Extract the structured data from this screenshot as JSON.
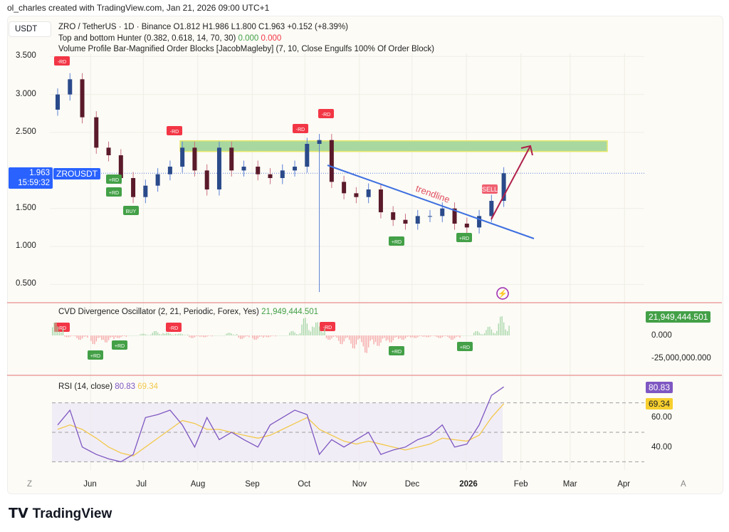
{
  "credit": "ol_charles created with TradingView.com, Jan 21, 2026 09:00 UTC+1",
  "currency_button": "USDT",
  "legend": {
    "symbol_line": "ZRO / TetherUS · 1D · Binance  O1.812  H1.986  L1.800  C1.963  +0.152 (+8.39%)",
    "hunter_name": "Top and bottom Hunter (0.382, 0.618, 14, 70, 30)",
    "hunter_v1": "0.000",
    "hunter_v2": "0.000",
    "vp_line": "Volume Profile Bar-Magnified Order Blocks [JacobMagleby] (7, 10, Close Engulfs 100% Of Order Block)",
    "cvd_name": "CVD Divergence Oscillator (2, 21, Periodic, Forex, Yes)",
    "cvd_value": "21,949,444.501",
    "rsi_name": "RSI (14, close)",
    "rsi_value": "80.83",
    "rsi_ma": "69.34"
  },
  "price_tag": {
    "price": "1.963",
    "countdown": "15:59:32",
    "symbol": "ZROUSDT"
  },
  "annotations": {
    "trendline": "trendline",
    "buy": "BUY",
    "sell": "SELL",
    "minus_rd": "-RD",
    "plus_rd": "+RD"
  },
  "colors": {
    "up": "#2a4a8a",
    "down": "#5a1a2a",
    "zone": "#a8d8a0",
    "trendline": "#3d6fe0",
    "arrow": "#b0204a",
    "rsi": "#7e57c2",
    "rsi_ma": "#f2c94c",
    "cvd_up": "#a5d6a7",
    "cvd_down": "#f5a5a5",
    "tag_blue": "#2962ff",
    "tag_green": "#43a047",
    "tag_red": "#f23645"
  },
  "chart_data": [
    {
      "type": "candlestick",
      "interval": "weekly-approx",
      "y_ticks": [
        "3.500",
        "3.000",
        "2.500",
        "1.500",
        "1.000",
        "0.500"
      ],
      "ylim": [
        0.3,
        3.6
      ],
      "x_ticks": [
        "Jun",
        "Jul",
        "Aug",
        "Sep",
        "Oct",
        "Nov",
        "Dec",
        "2026",
        "Feb",
        "Mar",
        "Apr"
      ],
      "dates": [
        "2025-05-10",
        "2025-05-17",
        "2025-05-24",
        "2025-06-01",
        "2025-06-08",
        "2025-06-15",
        "2025-06-22",
        "2025-06-29",
        "2025-07-06",
        "2025-07-13",
        "2025-07-20",
        "2025-07-27",
        "2025-08-03",
        "2025-08-10",
        "2025-08-17",
        "2025-08-24",
        "2025-09-01",
        "2025-09-08",
        "2025-09-15",
        "2025-09-22",
        "2025-09-29",
        "2025-10-06",
        "2025-10-13",
        "2025-10-20",
        "2025-10-27",
        "2025-11-03",
        "2025-11-10",
        "2025-11-17",
        "2025-11-24",
        "2025-12-01",
        "2025-12-08",
        "2025-12-15",
        "2025-12-22",
        "2025-12-29",
        "2026-01-05",
        "2026-01-12",
        "2026-01-19"
      ],
      "close": [
        3.0,
        3.2,
        2.7,
        2.3,
        2.2,
        1.9,
        1.65,
        1.8,
        1.95,
        2.05,
        2.3,
        2.0,
        1.75,
        2.3,
        2.0,
        2.05,
        1.95,
        1.9,
        2.0,
        2.05,
        2.35,
        2.4,
        1.85,
        1.7,
        1.65,
        1.75,
        1.45,
        1.35,
        1.3,
        1.4,
        1.4,
        1.5,
        1.3,
        1.25,
        1.4,
        1.6,
        1.963
      ],
      "zone": [
        2.25,
        2.39
      ],
      "last_price": 1.963,
      "crash_low": 0.4
    },
    {
      "type": "bar",
      "name": "CVD Divergence Oscillator",
      "y_ticks": [
        "0.000",
        "-25,000,000.000"
      ],
      "values_billions": [
        15,
        -2,
        -5,
        -10,
        -8,
        -3,
        0,
        2,
        5,
        3,
        2,
        -3,
        -2,
        0,
        3,
        -4,
        -5,
        -2,
        0,
        5,
        20,
        15,
        -5,
        -10,
        -15,
        -20,
        -12,
        -8,
        -5,
        -3,
        -2,
        -3,
        -5,
        0,
        5,
        10,
        21.9
      ]
    },
    {
      "type": "line",
      "name": "RSI",
      "y_ticks": [
        "60.00",
        "40.00"
      ],
      "bands": [
        30,
        50,
        70
      ],
      "ylim": [
        25,
        85
      ],
      "rsi": [
        55,
        65,
        40,
        35,
        32,
        30,
        35,
        60,
        62,
        65,
        55,
        40,
        60,
        45,
        50,
        45,
        40,
        55,
        60,
        65,
        62,
        35,
        45,
        40,
        45,
        50,
        35,
        38,
        40,
        45,
        48,
        55,
        40,
        42,
        55,
        75,
        80.83
      ],
      "ma": [
        52,
        55,
        52,
        46,
        40,
        36,
        34,
        40,
        46,
        52,
        58,
        56,
        52,
        52,
        50,
        48,
        46,
        48,
        52,
        56,
        60,
        52,
        48,
        44,
        42,
        44,
        42,
        40,
        38,
        40,
        42,
        46,
        45,
        44,
        48,
        60,
        69.34
      ]
    }
  ]
}
